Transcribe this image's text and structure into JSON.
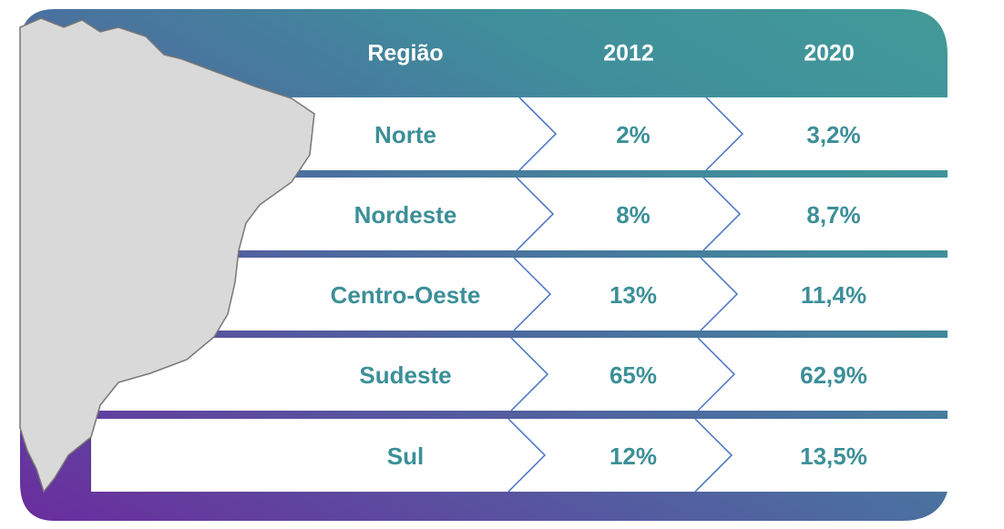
{
  "table": {
    "header": [
      "Região",
      "2012",
      "2020"
    ],
    "rows": [
      [
        "Norte",
        "2%",
        "3,2%"
      ],
      [
        "Nordeste",
        "8%",
        "8,7%"
      ],
      [
        "Centro-Oeste",
        "13%",
        "11,4%"
      ],
      [
        "Sudeste",
        "65%",
        "62,9%"
      ],
      [
        "Sul",
        "12%",
        "13,5%"
      ]
    ]
  }
}
